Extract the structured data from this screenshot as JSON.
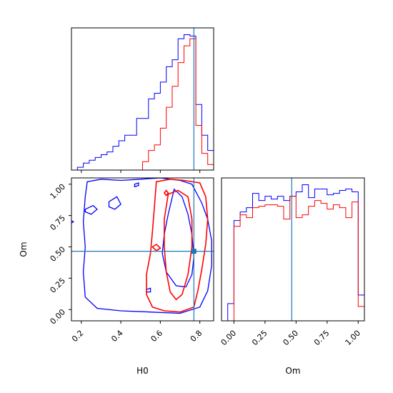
{
  "chart_data": {
    "type": "corner",
    "parameters": [
      "H0",
      "Om"
    ],
    "truth": {
      "H0": 0.77,
      "Om": 0.465
    },
    "colors": {
      "series_a": "#0000ff",
      "series_b": "#ff0000",
      "truth": "#1f77b4"
    },
    "h0_marginal": {
      "xlim": [
        0.15,
        0.87
      ],
      "x_ticks": [
        0.2,
        0.4,
        0.6,
        0.8
      ],
      "x_tick_labels": [
        "0.2",
        "0.4",
        "0.6",
        "0.8"
      ],
      "bin_edges": [
        0.15,
        0.18,
        0.21,
        0.24,
        0.27,
        0.3,
        0.33,
        0.36,
        0.39,
        0.42,
        0.45,
        0.48,
        0.51,
        0.54,
        0.57,
        0.6,
        0.63,
        0.66,
        0.69,
        0.72,
        0.75,
        0.78,
        0.81,
        0.84,
        0.87
      ],
      "blue_counts": [
        0.0,
        0.02,
        0.05,
        0.07,
        0.09,
        0.11,
        0.13,
        0.17,
        0.21,
        0.25,
        0.25,
        0.37,
        0.37,
        0.51,
        0.55,
        0.63,
        0.74,
        0.79,
        0.94,
        0.97,
        0.96,
        0.47,
        0.25,
        0.14
      ],
      "red_counts": [
        0.0,
        0.0,
        0.0,
        0.0,
        0.0,
        0.0,
        0.0,
        0.0,
        0.0,
        0.0,
        0.0,
        0.0,
        0.06,
        0.14,
        0.18,
        0.3,
        0.45,
        0.6,
        0.77,
        0.89,
        0.94,
        0.32,
        0.12,
        0.04
      ]
    },
    "om_marginal": {
      "xlim": [
        -0.1,
        1.05
      ],
      "x_ticks": [
        0.0,
        0.25,
        0.5,
        0.75,
        1.0
      ],
      "x_tick_labels": [
        "0.00",
        "0.25",
        "0.50",
        "0.75",
        "1.00"
      ],
      "xlabel": "Om",
      "bin_edges": [
        -0.05,
        0.0,
        0.05,
        0.1,
        0.15,
        0.2,
        0.25,
        0.3,
        0.35,
        0.4,
        0.45,
        0.5,
        0.55,
        0.6,
        0.65,
        0.7,
        0.75,
        0.8,
        0.85,
        0.9,
        0.95,
        1.0,
        1.05
      ],
      "blue_counts": [
        0.12,
        0.7,
        0.76,
        0.79,
        0.89,
        0.84,
        0.87,
        0.85,
        0.87,
        0.84,
        0.87,
        0.9,
        0.95,
        0.86,
        0.92,
        0.92,
        0.88,
        0.89,
        0.91,
        0.92,
        0.9,
        0.18
      ],
      "red_counts": [
        0.0,
        0.66,
        0.74,
        0.72,
        0.79,
        0.8,
        0.81,
        0.81,
        0.8,
        0.71,
        0.87,
        0.72,
        0.74,
        0.8,
        0.84,
        0.82,
        0.78,
        0.81,
        0.79,
        0.72,
        0.83,
        0.1
      ]
    },
    "joint": {
      "xlim": [
        0.15,
        0.87
      ],
      "ylim": [
        -0.09,
        1.05
      ],
      "x_ticks": [
        0.2,
        0.4,
        0.6,
        0.8
      ],
      "x_tick_labels": [
        "0.2",
        "0.4",
        "0.6",
        "0.8"
      ],
      "y_ticks": [
        0.0,
        0.25,
        0.5,
        0.75,
        1.0
      ],
      "y_tick_labels": [
        "0.00",
        "0.25",
        "0.50",
        "0.75",
        "1.00"
      ],
      "xlabel": "H0",
      "ylabel": "Om",
      "contours": [
        {
          "color": "blue",
          "points": [
            [
              0.23,
              1.02
            ],
            [
              0.3,
              1.04
            ],
            [
              0.4,
              1.03
            ],
            [
              0.5,
              1.04
            ],
            [
              0.6,
              1.05
            ],
            [
              0.7,
              1.03
            ],
            [
              0.76,
              1.0
            ],
            [
              0.81,
              0.85
            ],
            [
              0.84,
              0.72
            ],
            [
              0.86,
              0.55
            ],
            [
              0.86,
              0.35
            ],
            [
              0.84,
              0.15
            ],
            [
              0.8,
              0.02
            ],
            [
              0.7,
              -0.03
            ],
            [
              0.55,
              -0.02
            ],
            [
              0.4,
              -0.01
            ],
            [
              0.28,
              0.01
            ],
            [
              0.22,
              0.1
            ],
            [
              0.21,
              0.3
            ],
            [
              0.22,
              0.5
            ],
            [
              0.21,
              0.7
            ],
            [
              0.22,
              0.9
            ],
            [
              0.23,
              1.02
            ]
          ]
        },
        {
          "color": "blue",
          "points": [
            [
              0.67,
              0.96
            ],
            [
              0.71,
              0.9
            ],
            [
              0.74,
              0.76
            ],
            [
              0.76,
              0.6
            ],
            [
              0.77,
              0.42
            ],
            [
              0.76,
              0.28
            ],
            [
              0.73,
              0.18
            ],
            [
              0.68,
              0.19
            ],
            [
              0.63,
              0.3
            ],
            [
              0.61,
              0.45
            ],
            [
              0.62,
              0.6
            ],
            [
              0.64,
              0.76
            ],
            [
              0.67,
              0.96
            ]
          ]
        },
        {
          "color": "blue",
          "points": [
            [
              0.22,
              0.8
            ],
            [
              0.26,
              0.83
            ],
            [
              0.28,
              0.8
            ],
            [
              0.25,
              0.76
            ],
            [
              0.22,
              0.78
            ],
            [
              0.22,
              0.8
            ]
          ]
        },
        {
          "color": "blue",
          "points": [
            [
              0.34,
              0.86
            ],
            [
              0.38,
              0.9
            ],
            [
              0.4,
              0.84
            ],
            [
              0.37,
              0.8
            ],
            [
              0.34,
              0.82
            ],
            [
              0.34,
              0.86
            ]
          ]
        },
        {
          "color": "blue",
          "points": [
            [
              0.47,
              1.0
            ],
            [
              0.49,
              1.01
            ],
            [
              0.49,
              0.99
            ],
            [
              0.47,
              0.98
            ],
            [
              0.47,
              1.0
            ]
          ]
        },
        {
          "color": "blue",
          "points": [
            [
              0.53,
              0.16
            ],
            [
              0.55,
              0.17
            ],
            [
              0.55,
              0.14
            ],
            [
              0.53,
              0.14
            ],
            [
              0.53,
              0.16
            ]
          ]
        },
        {
          "color": "blue",
          "points": [
            [
              0.12,
              0.7
            ],
            [
              0.14,
              0.72
            ],
            [
              0.16,
              0.7
            ],
            [
              0.14,
              0.68
            ],
            [
              0.12,
              0.7
            ]
          ]
        },
        {
          "color": "red",
          "points": [
            [
              0.58,
              1.02
            ],
            [
              0.65,
              1.04
            ],
            [
              0.72,
              1.03
            ],
            [
              0.8,
              1.01
            ],
            [
              0.83,
              0.9
            ],
            [
              0.84,
              0.72
            ],
            [
              0.83,
              0.52
            ],
            [
              0.81,
              0.32
            ],
            [
              0.79,
              0.15
            ],
            [
              0.77,
              0.02
            ],
            [
              0.7,
              -0.02
            ],
            [
              0.62,
              -0.01
            ],
            [
              0.56,
              0.02
            ],
            [
              0.53,
              0.12
            ],
            [
              0.53,
              0.28
            ],
            [
              0.55,
              0.45
            ],
            [
              0.56,
              0.62
            ],
            [
              0.57,
              0.82
            ],
            [
              0.58,
              1.02
            ]
          ]
        },
        {
          "color": "red",
          "points": [
            [
              0.64,
              0.92
            ],
            [
              0.69,
              0.95
            ],
            [
              0.74,
              0.9
            ],
            [
              0.76,
              0.72
            ],
            [
              0.76,
              0.5
            ],
            [
              0.74,
              0.28
            ],
            [
              0.71,
              0.12
            ],
            [
              0.68,
              0.08
            ],
            [
              0.65,
              0.14
            ],
            [
              0.63,
              0.3
            ],
            [
              0.62,
              0.5
            ],
            [
              0.62,
              0.72
            ],
            [
              0.64,
              0.92
            ]
          ]
        },
        {
          "color": "red",
          "points": [
            [
              0.62,
              0.93
            ],
            [
              0.63,
              0.95
            ],
            [
              0.64,
              0.93
            ],
            [
              0.63,
              0.91
            ],
            [
              0.62,
              0.93
            ]
          ]
        },
        {
          "color": "red",
          "points": [
            [
              0.56,
              0.5
            ],
            [
              0.58,
              0.52
            ],
            [
              0.6,
              0.49
            ],
            [
              0.58,
              0.47
            ],
            [
              0.56,
              0.5
            ]
          ]
        }
      ]
    }
  }
}
